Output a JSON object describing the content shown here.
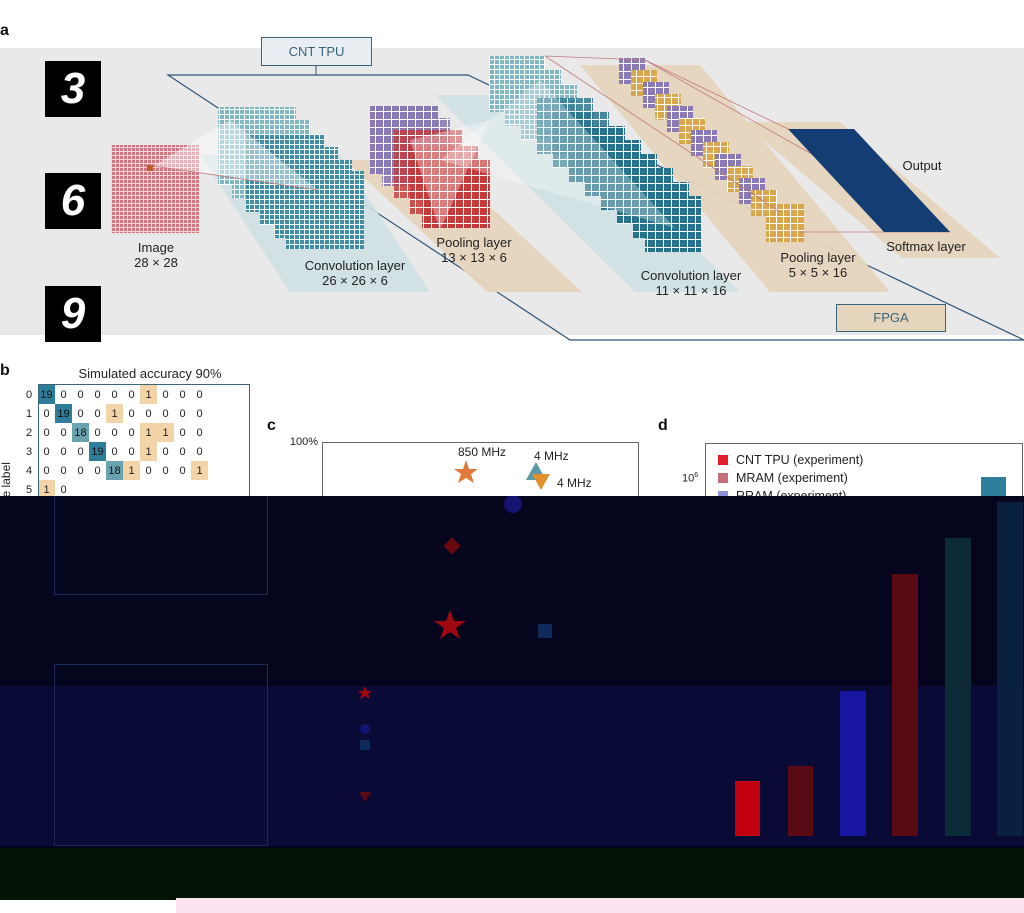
{
  "panels": {
    "a": "a",
    "b": "b",
    "c": "c",
    "d": "d"
  },
  "panel_a": {
    "tpu_label": "CNT TPU",
    "fpga_label": "FPGA",
    "digits": [
      "3",
      "6",
      "9"
    ],
    "image_label": "Image",
    "image_dims": "28 × 28",
    "conv1_label": "Convolution layer",
    "conv1_dims": "26 × 26 × 6",
    "pool1_label": "Pooling layer",
    "pool1_dims": "13 × 13 × 6",
    "conv2_label": "Convolution layer",
    "conv2_dims": "11 × 11 × 16",
    "pool2_label": "Pooling layer",
    "pool2_dims": "5 × 5 × 16",
    "output_label": "Output",
    "softmax_label": "Softmax layer"
  },
  "panel_b": {
    "title": "Simulated accuracy 90%",
    "ylabel": "True label",
    "row_labels": [
      "0",
      "1",
      "2",
      "3",
      "4",
      "5"
    ],
    "rows": [
      [
        "19",
        "0",
        "0",
        "0",
        "0",
        "0",
        "1",
        "0",
        "0",
        "0"
      ],
      [
        "0",
        "19",
        "0",
        "0",
        "1",
        "0",
        "0",
        "0",
        "0",
        "0"
      ],
      [
        "0",
        "0",
        "18",
        "0",
        "0",
        "0",
        "1",
        "1",
        "0",
        "0"
      ],
      [
        "0",
        "0",
        "0",
        "19",
        "0",
        "0",
        "1",
        "0",
        "0",
        "0"
      ],
      [
        "0",
        "0",
        "0",
        "0",
        "18",
        "1",
        "0",
        "0",
        "0",
        "1"
      ],
      [
        "1",
        "0",
        "",
        "",
        "",
        "",
        "",
        "",
        "",
        ""
      ]
    ],
    "colors": {
      "diag_high": "#2e7d9a",
      "diag_mid": "#6aa3b0",
      "off": "#f3d3a8"
    }
  },
  "panel_c": {
    "ytick_top": "100%",
    "annotations": [
      "850 MHz",
      "4 MHz",
      "4 MHz"
    ],
    "colors": {
      "star": "#e07a3a",
      "triangle_up": "#5a9aa6",
      "triangle_down": "#e0902e",
      "circle": "#2a2aa0"
    }
  },
  "panel_d": {
    "ytick": "10",
    "ytick_exp": "6",
    "legend": [
      {
        "label": "CNT TPU (experiment)",
        "color": "#e01e2a"
      },
      {
        "label": "MRAM (experiment)",
        "color": "#c4707a"
      },
      {
        "label": "RRAM (experiment)",
        "color": "#8f8fe0"
      }
    ],
    "bar_color": "#2e7d9a"
  }
}
